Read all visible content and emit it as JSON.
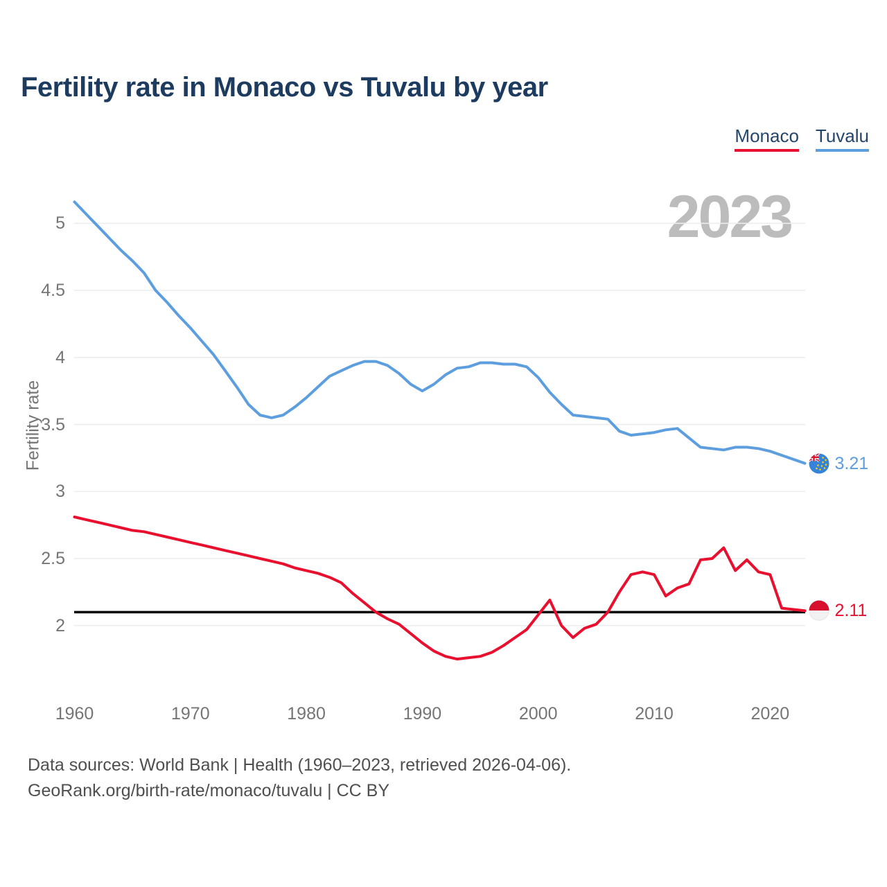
{
  "title": "Fertility rate in Monaco vs Tuvalu by year",
  "watermark": "2023",
  "legend": [
    {
      "label": "Monaco",
      "color": "#e8102e"
    },
    {
      "label": "Tuvalu",
      "color": "#5d9ede"
    }
  ],
  "chart_data": {
    "type": "line",
    "title": "Fertility rate in Monaco vs Tuvalu by year",
    "xlabel": "",
    "ylabel": "Fertility rate",
    "x": [
      1960,
      1961,
      1962,
      1963,
      1964,
      1965,
      1966,
      1967,
      1968,
      1969,
      1970,
      1971,
      1972,
      1973,
      1974,
      1975,
      1976,
      1977,
      1978,
      1979,
      1980,
      1981,
      1982,
      1983,
      1984,
      1985,
      1986,
      1987,
      1988,
      1989,
      1990,
      1991,
      1992,
      1993,
      1994,
      1995,
      1996,
      1997,
      1998,
      1999,
      2000,
      2001,
      2002,
      2003,
      2004,
      2005,
      2006,
      2007,
      2008,
      2009,
      2010,
      2011,
      2012,
      2013,
      2014,
      2015,
      2016,
      2017,
      2018,
      2019,
      2020,
      2021,
      2022,
      2023
    ],
    "series": [
      {
        "name": "Monaco",
        "color": "#e8102e",
        "values": [
          2.81,
          2.79,
          2.77,
          2.75,
          2.73,
          2.71,
          2.7,
          2.68,
          2.66,
          2.64,
          2.62,
          2.6,
          2.58,
          2.56,
          2.54,
          2.52,
          2.5,
          2.48,
          2.46,
          2.43,
          2.41,
          2.39,
          2.36,
          2.32,
          2.24,
          2.17,
          2.1,
          2.05,
          2.01,
          1.94,
          1.87,
          1.81,
          1.77,
          1.75,
          1.76,
          1.77,
          1.8,
          1.85,
          1.91,
          1.97,
          2.08,
          2.19,
          2.0,
          1.91,
          1.98,
          2.01,
          2.1,
          2.25,
          2.38,
          2.4,
          2.38,
          2.22,
          2.28,
          2.31,
          2.49,
          2.5,
          2.58,
          2.41,
          2.49,
          2.4,
          2.38,
          2.13,
          2.12,
          2.11
        ]
      },
      {
        "name": "Tuvalu",
        "color": "#5d9ede",
        "values": [
          5.16,
          5.07,
          4.98,
          4.89,
          4.8,
          4.72,
          4.63,
          4.5,
          4.41,
          4.31,
          4.22,
          4.12,
          4.02,
          3.9,
          3.78,
          3.65,
          3.57,
          3.55,
          3.57,
          3.63,
          3.7,
          3.78,
          3.86,
          3.9,
          3.94,
          3.97,
          3.97,
          3.94,
          3.88,
          3.8,
          3.75,
          3.8,
          3.87,
          3.92,
          3.93,
          3.96,
          3.96,
          3.95,
          3.95,
          3.93,
          3.85,
          3.74,
          3.65,
          3.57,
          3.56,
          3.55,
          3.54,
          3.45,
          3.42,
          3.43,
          3.44,
          3.46,
          3.47,
          3.4,
          3.33,
          3.32,
          3.31,
          3.33,
          3.33,
          3.32,
          3.3,
          3.27,
          3.24,
          3.21
        ]
      }
    ],
    "yticks": [
      2,
      2.5,
      3,
      3.5,
      4,
      4.5,
      5
    ],
    "ytick_labels": [
      "2",
      "2.5",
      "3",
      "3.5",
      "4",
      "4.5",
      "5"
    ],
    "xticks": [
      1960,
      1970,
      1980,
      1990,
      2000,
      2010,
      2020
    ],
    "ylim": [
      1.7,
      5.2
    ],
    "grid": true,
    "gridline_color": "#ededed",
    "legend_position": "top-right",
    "reference_line": {
      "value": 2.1,
      "color": "#000000"
    },
    "end_labels": [
      {
        "series": "Tuvalu",
        "value": "3.21"
      },
      {
        "series": "Monaco",
        "value": "2.11"
      }
    ]
  },
  "source": {
    "line1": "Data sources: World Bank | Health (1960–2023, retrieved 2026-04-06).",
    "line2": "GeoRank.org/birth-rate/monaco/tuvalu | CC BY"
  }
}
